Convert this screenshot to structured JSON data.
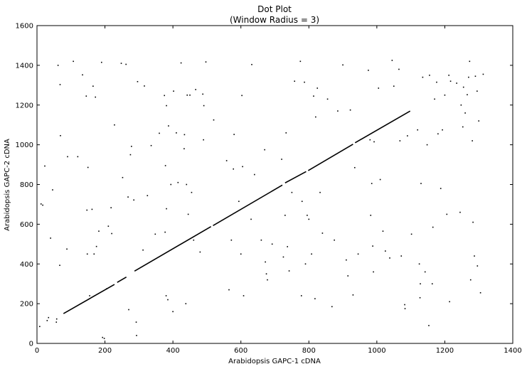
{
  "chart_data": {
    "type": "scatter",
    "title": "Dot Plot",
    "subtitle": "(Window Radius = 3)",
    "xlabel": "Arabidopsis GAPC-1 cDNA",
    "ylabel": "Arabidopsis GAPC-2 cDNA",
    "xlim": [
      0,
      1400
    ],
    "ylim": [
      0,
      1600
    ],
    "xticks": [
      0,
      200,
      400,
      600,
      800,
      1000,
      1200,
      1400
    ],
    "yticks": [
      0,
      200,
      400,
      600,
      800,
      1000,
      1200,
      1400,
      1600
    ],
    "grid": false,
    "legend": "none",
    "mark_color": "#000000",
    "diagonal_segments": [
      {
        "x": [
          78,
          228
        ],
        "y": [
          150,
          297
        ]
      },
      {
        "x": [
          236,
          263
        ],
        "y": [
          307,
          334
        ]
      },
      {
        "x": [
          287,
          512
        ],
        "y": [
          364,
          588
        ]
      },
      {
        "x": [
          518,
          722
        ],
        "y": [
          593,
          797
        ]
      },
      {
        "x": [
          730,
          792
        ],
        "y": [
          808,
          865
        ]
      },
      {
        "x": [
          798,
          930
        ],
        "y": [
          870,
          1003
        ]
      },
      {
        "x": [
          936,
          1098
        ],
        "y": [
          1010,
          1170
        ]
      }
    ],
    "points": [
      [
        8,
        85
      ],
      [
        12,
        702
      ],
      [
        17,
        696
      ],
      [
        23,
        893
      ],
      [
        30,
        115
      ],
      [
        34,
        130
      ],
      [
        40,
        530
      ],
      [
        46,
        773
      ],
      [
        57,
        107
      ],
      [
        58,
        123
      ],
      [
        62,
        1400
      ],
      [
        67,
        393
      ],
      [
        68,
        1303
      ],
      [
        69,
        1046
      ],
      [
        88,
        475
      ],
      [
        90,
        940
      ],
      [
        107,
        1420
      ],
      [
        120,
        940
      ],
      [
        134,
        1352
      ],
      [
        145,
        1245
      ],
      [
        147,
        671
      ],
      [
        148,
        450
      ],
      [
        150,
        886
      ],
      [
        155,
        240
      ],
      [
        162,
        675
      ],
      [
        165,
        1295
      ],
      [
        168,
        450
      ],
      [
        172,
        1240
      ],
      [
        175,
        488
      ],
      [
        182,
        565
      ],
      [
        190,
        1415
      ],
      [
        193,
        30
      ],
      [
        198,
        25
      ],
      [
        205,
        275
      ],
      [
        210,
        590
      ],
      [
        218,
        683
      ],
      [
        220,
        553
      ],
      [
        228,
        1100
      ],
      [
        248,
        1410
      ],
      [
        252,
        835
      ],
      [
        262,
        1405
      ],
      [
        268,
        737
      ],
      [
        270,
        170
      ],
      [
        275,
        950
      ],
      [
        278,
        992
      ],
      [
        285,
        722
      ],
      [
        292,
        107
      ],
      [
        293,
        40
      ],
      [
        296,
        1318
      ],
      [
        312,
        470
      ],
      [
        316,
        1296
      ],
      [
        325,
        744
      ],
      [
        336,
        996
      ],
      [
        348,
        550
      ],
      [
        360,
        1058
      ],
      [
        375,
        1248
      ],
      [
        377,
        560
      ],
      [
        378,
        895
      ],
      [
        380,
        240
      ],
      [
        381,
        1197
      ],
      [
        381,
        678
      ],
      [
        385,
        220
      ],
      [
        387,
        1095
      ],
      [
        394,
        800
      ],
      [
        400,
        160
      ],
      [
        402,
        1270
      ],
      [
        410,
        1060
      ],
      [
        415,
        810
      ],
      [
        424,
        1412
      ],
      [
        433,
        980
      ],
      [
        434,
        1051
      ],
      [
        438,
        200
      ],
      [
        440,
        800
      ],
      [
        442,
        1250
      ],
      [
        445,
        650
      ],
      [
        450,
        1250
      ],
      [
        455,
        760
      ],
      [
        461,
        520
      ],
      [
        467,
        1278
      ],
      [
        480,
        460
      ],
      [
        488,
        1255
      ],
      [
        490,
        1025
      ],
      [
        491,
        1197
      ],
      [
        497,
        1417
      ],
      [
        520,
        1125
      ],
      [
        558,
        920
      ],
      [
        565,
        270
      ],
      [
        572,
        520
      ],
      [
        578,
        878
      ],
      [
        580,
        1052
      ],
      [
        594,
        715
      ],
      [
        600,
        450
      ],
      [
        603,
        1248
      ],
      [
        605,
        890
      ],
      [
        608,
        240
      ],
      [
        630,
        625
      ],
      [
        632,
        1404
      ],
      [
        640,
        850
      ],
      [
        660,
        520
      ],
      [
        670,
        975
      ],
      [
        672,
        410
      ],
      [
        675,
        350
      ],
      [
        678,
        320
      ],
      [
        692,
        500
      ],
      [
        720,
        927
      ],
      [
        725,
        435
      ],
      [
        730,
        645
      ],
      [
        733,
        1060
      ],
      [
        737,
        487
      ],
      [
        742,
        365
      ],
      [
        750,
        760
      ],
      [
        758,
        1320
      ],
      [
        775,
        1420
      ],
      [
        778,
        240
      ],
      [
        780,
        715
      ],
      [
        787,
        1315
      ],
      [
        790,
        400
      ],
      [
        795,
        645
      ],
      [
        800,
        625
      ],
      [
        808,
        450
      ],
      [
        814,
        1245
      ],
      [
        818,
        225
      ],
      [
        820,
        1140
      ],
      [
        825,
        1285
      ],
      [
        833,
        760
      ],
      [
        840,
        555
      ],
      [
        855,
        1230
      ],
      [
        868,
        185
      ],
      [
        875,
        520
      ],
      [
        885,
        1170
      ],
      [
        900,
        1402
      ],
      [
        910,
        420
      ],
      [
        915,
        340
      ],
      [
        922,
        1175
      ],
      [
        930,
        244
      ],
      [
        935,
        885
      ],
      [
        945,
        450
      ],
      [
        975,
        1375
      ],
      [
        980,
        1025
      ],
      [
        982,
        645
      ],
      [
        985,
        805
      ],
      [
        988,
        490
      ],
      [
        990,
        360
      ],
      [
        992,
        1015
      ],
      [
        1005,
        1285
      ],
      [
        1010,
        825
      ],
      [
        1018,
        565
      ],
      [
        1025,
        465
      ],
      [
        1038,
        430
      ],
      [
        1045,
        1425
      ],
      [
        1050,
        1295
      ],
      [
        1065,
        1380
      ],
      [
        1068,
        1020
      ],
      [
        1072,
        440
      ],
      [
        1082,
        195
      ],
      [
        1083,
        175
      ],
      [
        1090,
        1045
      ],
      [
        1102,
        550
      ],
      [
        1120,
        1075
      ],
      [
        1125,
        400
      ],
      [
        1127,
        230
      ],
      [
        1128,
        300
      ],
      [
        1130,
        805
      ],
      [
        1135,
        1340
      ],
      [
        1142,
        360
      ],
      [
        1148,
        1000
      ],
      [
        1153,
        90
      ],
      [
        1155,
        1350
      ],
      [
        1163,
        300
      ],
      [
        1165,
        585
      ],
      [
        1170,
        1230
      ],
      [
        1176,
        1315
      ],
      [
        1180,
        1055
      ],
      [
        1188,
        780
      ],
      [
        1193,
        1075
      ],
      [
        1200,
        1250
      ],
      [
        1206,
        650
      ],
      [
        1212,
        1350
      ],
      [
        1214,
        210
      ],
      [
        1217,
        1320
      ],
      [
        1235,
        1310
      ],
      [
        1245,
        660
      ],
      [
        1248,
        1200
      ],
      [
        1253,
        1090
      ],
      [
        1255,
        1290
      ],
      [
        1260,
        1160
      ],
      [
        1266,
        1252
      ],
      [
        1270,
        1340
      ],
      [
        1273,
        1420
      ],
      [
        1276,
        320
      ],
      [
        1281,
        1020
      ],
      [
        1283,
        610
      ],
      [
        1287,
        440
      ],
      [
        1290,
        1345
      ],
      [
        1295,
        1270
      ],
      [
        1296,
        390
      ],
      [
        1300,
        1120
      ],
      [
        1305,
        255
      ],
      [
        1313,
        1355
      ]
    ]
  }
}
